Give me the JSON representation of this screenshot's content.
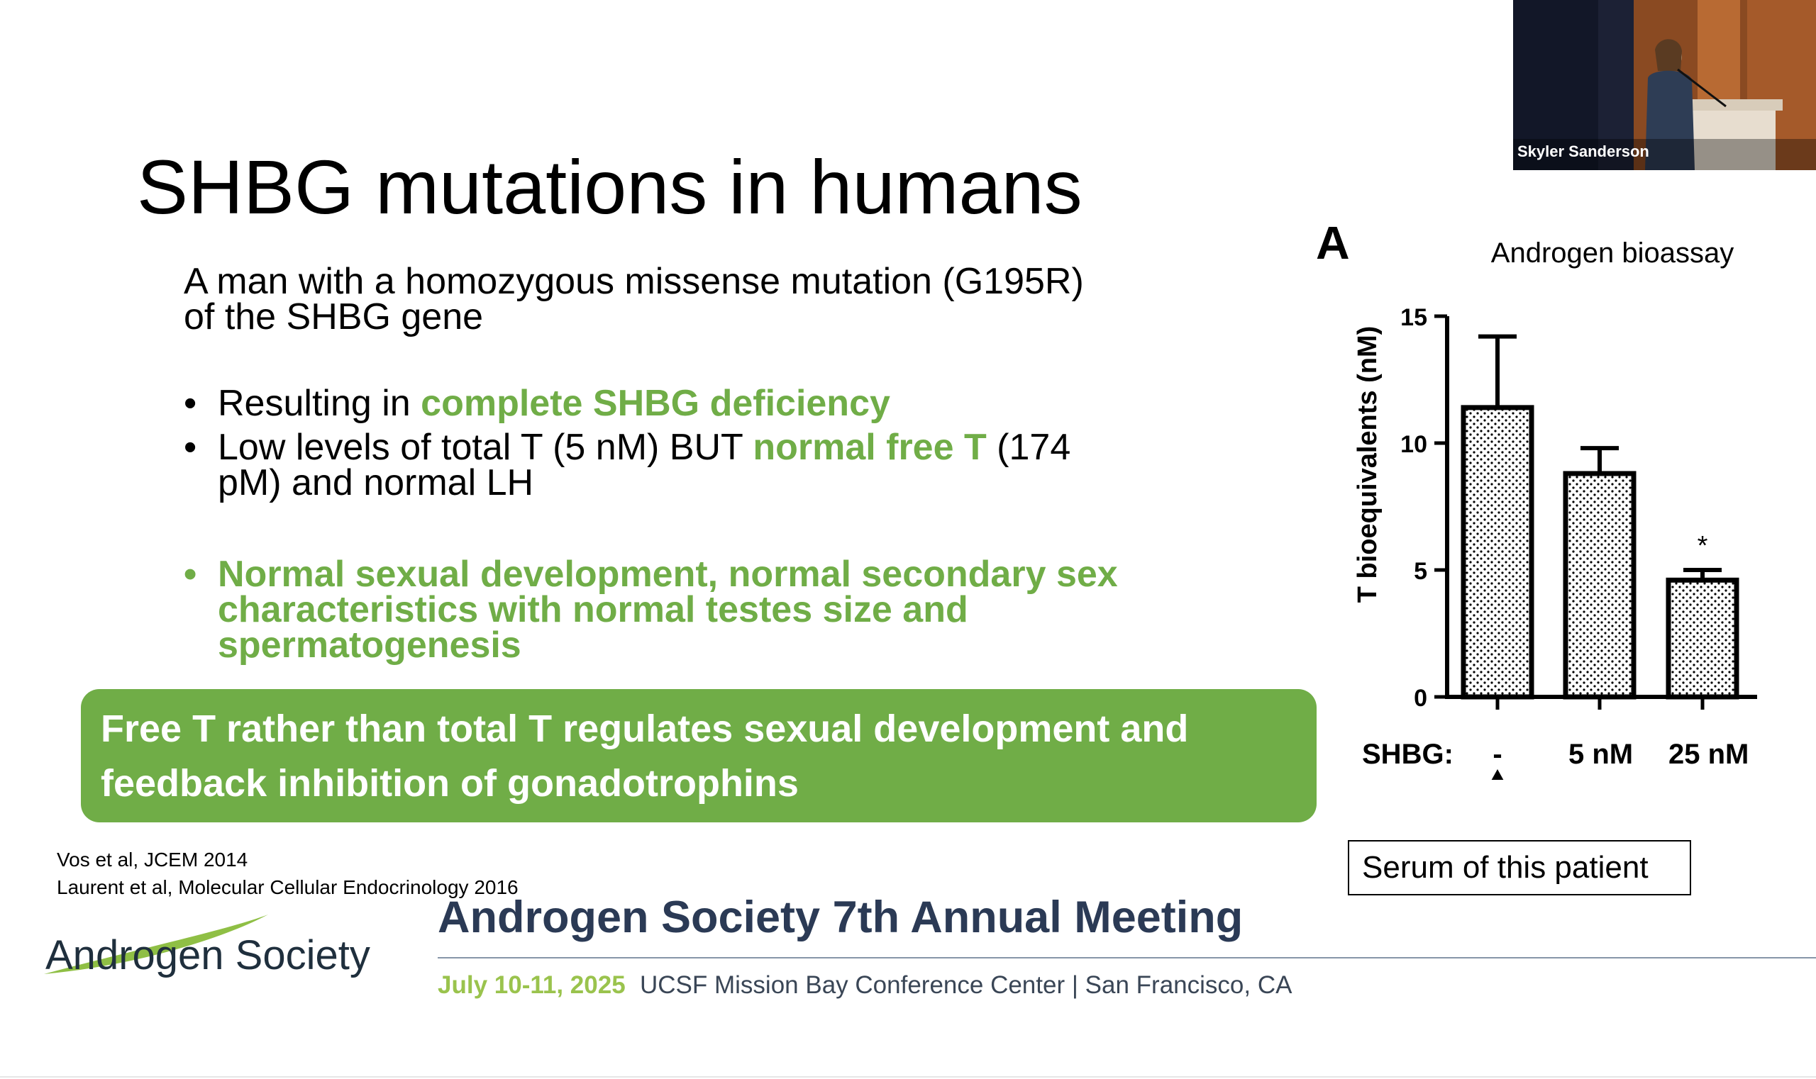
{
  "slide": {
    "title": "SHBG mutations in humans",
    "subtitle": "A man with a homozygous missense mutation (G195R) of the SHBG gene",
    "bullets": [
      {
        "pre": "Resulting in ",
        "highlight": "complete SHBG deficiency",
        "post": ""
      },
      {
        "pre": "Low levels of total T (5 nM) BUT ",
        "highlight": "normal free T",
        "post": " (174 pM) and normal LH"
      }
    ],
    "bullet_green": "Normal sexual development, normal secondary sex characteristics with normal testes size and spermatogenesis",
    "conclusion": "Free T rather than total T regulates sexual development and feedback inhibition of gonadotrophins",
    "references": [
      "Vos et al, JCEM 2014",
      "Laurent et al, Molecular Cellular Endocrinology 2016"
    ],
    "bullet_glyph": "•"
  },
  "footer": {
    "logo_text": "Androgen Society",
    "meeting_title": "Androgen Society 7th Annual Meeting",
    "date": "July 10-11, 2025",
    "venue": "UCSF Mission Bay Conference Center  |  San Francisco, CA"
  },
  "chart_data": {
    "type": "bar",
    "panel_label": "A",
    "title": "Androgen bioassay",
    "ylabel": "T bioequivalents (nM)",
    "xlabel_prefix": "SHBG:",
    "categories": [
      "-",
      "5 nM",
      "25 nM"
    ],
    "values": [
      11.4,
      8.8,
      4.6
    ],
    "errors": [
      2.8,
      1.0,
      0.4
    ],
    "significance": [
      "",
      "",
      "*"
    ],
    "ylim": [
      0,
      15
    ],
    "yticks": [
      0,
      5,
      10,
      15
    ],
    "annotation": "Serum of this patient"
  },
  "webcam": {
    "speaker_name": "Skyler Sanderson"
  },
  "colors": {
    "accent_green": "#70ad47",
    "navy": "#2b3a55",
    "date_green": "#9ac34d"
  }
}
